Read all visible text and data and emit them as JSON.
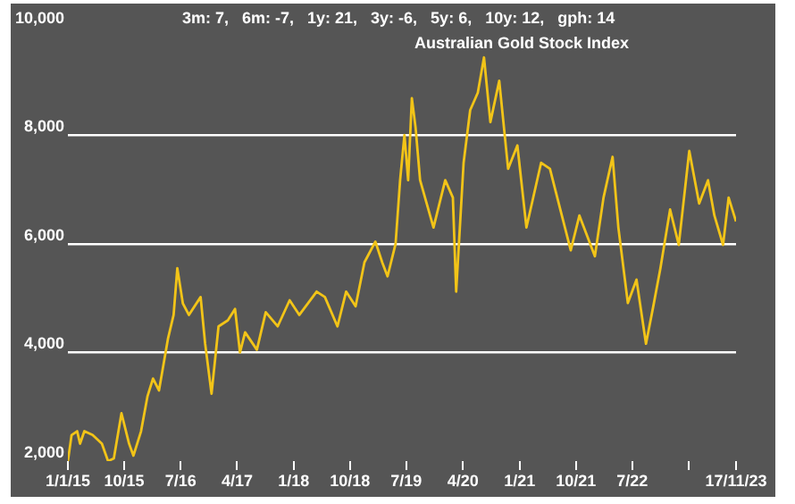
{
  "chart_data": {
    "type": "line",
    "title": "Australian Gold Stock Index",
    "subtitle": "3m: 7,   6m: -7,   1y: 21,   3y: -6,   5y: 6,   10y: 12,   gph: 14",
    "x": [
      "2015-01-01",
      "2015-01-19",
      "2015-02-15",
      "2015-03-01",
      "2015-03-22",
      "2015-05-01",
      "2015-06-15",
      "2015-07-15",
      "2015-08-12",
      "2015-09-18",
      "2015-10-25",
      "2015-11-15",
      "2015-12-22",
      "2016-01-22",
      "2016-02-18",
      "2016-03-18",
      "2016-05-01",
      "2016-05-28",
      "2016-06-15",
      "2016-07-12",
      "2016-08-10",
      "2016-10-06",
      "2016-10-28",
      "2016-11-28",
      "2017-01-01",
      "2017-02-15",
      "2017-03-22",
      "2017-04-15",
      "2017-05-10",
      "2017-07-06",
      "2017-08-18",
      "2017-10-15",
      "2017-12-12",
      "2018-01-28",
      "2018-04-22",
      "2018-06-01",
      "2018-08-01",
      "2018-09-12",
      "2018-10-28",
      "2018-12-10",
      "2019-02-01",
      "2019-03-06",
      "2019-04-01",
      "2019-05-10",
      "2019-06-01",
      "2019-06-22",
      "2019-07-10",
      "2019-07-28",
      "2019-08-15",
      "2019-09-06",
      "2019-11-10",
      "2020-01-06",
      "2020-02-12",
      "2020-02-28",
      "2020-04-04",
      "2020-05-06",
      "2020-06-12",
      "2020-07-12",
      "2020-08-12",
      "2020-09-24",
      "2020-11-06",
      "2020-12-21",
      "2021-02-03",
      "2021-04-15",
      "2021-05-28",
      "2021-07-10",
      "2021-09-06",
      "2021-10-18",
      "2022-01-01",
      "2022-02-12",
      "2022-03-28",
      "2022-04-25",
      "2022-06-10",
      "2022-07-22",
      "2022-09-06",
      "2022-10-12",
      "2022-11-15",
      "2023-01-01",
      "2023-02-12",
      "2023-04-04",
      "2023-05-22",
      "2023-07-04",
      "2023-08-04",
      "2023-09-15",
      "2023-10-12",
      "2023-11-17"
    ],
    "series": [
      {
        "color": "#f2c418",
        "values": [
          2000,
          2480,
          2550,
          2320,
          2550,
          2480,
          2320,
          2000,
          2050,
          2880,
          2320,
          2100,
          2550,
          3190,
          3520,
          3300,
          4260,
          4690,
          5550,
          4900,
          4690,
          5020,
          4160,
          3240,
          4480,
          4590,
          4800,
          4000,
          4370,
          4050,
          4740,
          4480,
          4960,
          4690,
          5120,
          5020,
          4480,
          5120,
          4850,
          5660,
          6040,
          5660,
          5400,
          6000,
          7170,
          8000,
          7170,
          8680,
          8140,
          7170,
          6300,
          7170,
          6850,
          5120,
          7490,
          8460,
          8780,
          9430,
          8240,
          9000,
          7380,
          7810,
          6300,
          7490,
          7380,
          6740,
          5880,
          6520,
          5770,
          6850,
          7600,
          6300,
          4910,
          5340,
          4160,
          4860,
          5550,
          6630,
          5980,
          7710,
          6740,
          7170,
          6520,
          5980,
          6850,
          6410
        ]
      }
    ],
    "xlim": [
      "2015-01-01",
      "2023-11-17"
    ],
    "xticks": [
      {
        "value": "2015-01-01",
        "label": "1/1/15"
      },
      {
        "value": "2015-10-01",
        "label": "10/15"
      },
      {
        "value": "2016-07-01",
        "label": "7/16"
      },
      {
        "value": "2017-04-01",
        "label": "4/17"
      },
      {
        "value": "2018-01-01",
        "label": "1/18"
      },
      {
        "value": "2018-10-01",
        "label": "10/18"
      },
      {
        "value": "2019-07-01",
        "label": "7/19"
      },
      {
        "value": "2020-04-01",
        "label": "4/20"
      },
      {
        "value": "2021-01-01",
        "label": "1/21"
      },
      {
        "value": "2021-10-01",
        "label": "10/21"
      },
      {
        "value": "2022-07-01",
        "label": "7/22"
      },
      {
        "value": "2023-04-01",
        "label": null
      },
      {
        "value": "2023-11-17",
        "label": "17/11/23"
      }
    ],
    "ylim": [
      2000,
      10000
    ],
    "yticks": [
      {
        "value": 2000,
        "label": "2,000"
      },
      {
        "value": 4000,
        "label": "4,000"
      },
      {
        "value": 6000,
        "label": "6,000"
      },
      {
        "value": 8000,
        "label": "8,000"
      },
      {
        "value": 10000,
        "label": "10,000"
      }
    ],
    "grid": "y",
    "legend": false,
    "marker": "none",
    "line_style": "solid"
  }
}
